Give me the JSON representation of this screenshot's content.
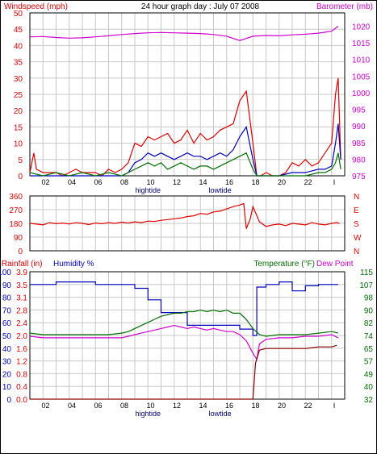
{
  "header": {
    "left_label": "Windspeed (mph)",
    "title": "24 hour graph day : July 07 2008",
    "right_label": "Barometer (mb)"
  },
  "colors": {
    "red": "#e00000",
    "blue": "#0000c0",
    "green": "#007000",
    "magenta": "#d000d0",
    "grid": "#c8c8c8",
    "dark_red": "#8a0000"
  },
  "x_axis": {
    "ticks": [
      "02",
      "04",
      "06",
      "08",
      "10",
      "12",
      "14",
      "16",
      "18",
      "20",
      "22",
      "I"
    ],
    "tide_labels": [
      {
        "text": "hightide",
        "hour": 9.0
      },
      {
        "text": "lowtide",
        "hour": 14.5
      }
    ]
  },
  "chart_data": [
    {
      "type": "line",
      "title": "",
      "y_left_label": "Windspeed (mph)",
      "y_left_ticks": [
        "0",
        "5",
        "10",
        "15",
        "20",
        "25",
        "30",
        "35",
        "40",
        "45",
        "50"
      ],
      "y_left_range": [
        0,
        50
      ],
      "y_right_label": "Barometer (mb)",
      "y_right_ticks": [
        "975",
        "980",
        "985",
        "990",
        "995",
        "1000",
        "1005",
        "1010",
        "1015",
        "1020"
      ],
      "y_right_range": [
        975,
        1024
      ],
      "x_unit": "hour",
      "series": [
        {
          "name": "Barometer (mb)",
          "color": "magenta",
          "x": [
            0,
            1,
            2,
            3,
            4,
            5,
            6,
            7,
            8,
            9,
            10,
            11,
            12,
            13,
            14,
            15,
            15.5,
            16,
            16.5,
            17,
            18,
            19,
            20,
            21,
            22,
            23,
            23.5
          ],
          "y": [
            1016.8,
            1016.9,
            1016.6,
            1016.4,
            1016.5,
            1016.8,
            1017.1,
            1017.5,
            1017.8,
            1018.0,
            1018.1,
            1018.0,
            1017.9,
            1017.8,
            1017.5,
            1017.0,
            1016.3,
            1015.7,
            1016.3,
            1017.0,
            1017.2,
            1017.1,
            1017.4,
            1017.6,
            1017.9,
            1018.5,
            1020.0
          ]
        },
        {
          "name": "",
          "color": "red",
          "x": [
            0,
            0.3,
            0.5,
            1,
            1.5,
            2,
            2.5,
            3,
            3.5,
            4,
            4.5,
            5,
            5.5,
            6,
            6.5,
            7,
            7.5,
            8,
            8.5,
            9,
            9.5,
            10,
            10.5,
            11,
            11.5,
            12,
            12.5,
            13,
            13.5,
            14,
            14.5,
            15,
            15.5,
            16,
            16.5,
            17,
            17.3,
            17.6,
            18,
            18.5,
            19,
            19.5,
            20,
            20.5,
            21,
            21.5,
            22,
            22.5,
            23,
            23.3,
            23.5,
            23.7
          ],
          "y": [
            1,
            7,
            2,
            1,
            1,
            1,
            0,
            1,
            2,
            1,
            1,
            1,
            0,
            2,
            1,
            2,
            4,
            10,
            9,
            12,
            11,
            12,
            13,
            10,
            11,
            14,
            10,
            13,
            11,
            12,
            14,
            15,
            16,
            23,
            26,
            10,
            0,
            0,
            1,
            0,
            0,
            1,
            4,
            3,
            5,
            3,
            4,
            7,
            10,
            25,
            30,
            5
          ]
        },
        {
          "name": "",
          "color": "blue",
          "x": [
            0,
            1,
            2,
            3,
            4,
            5,
            6,
            7,
            7.5,
            8,
            8.5,
            9,
            9.5,
            10,
            10.5,
            11,
            11.5,
            12,
            12.5,
            13,
            13.5,
            14,
            14.5,
            15,
            15.5,
            16,
            16.5,
            17,
            17.3,
            18,
            19,
            20,
            21,
            22,
            22.5,
            23,
            23.3,
            23.5,
            23.7
          ],
          "y": [
            0,
            0,
            0,
            0,
            0,
            0,
            0,
            0,
            1,
            4,
            5,
            7,
            6,
            7,
            6,
            5,
            6,
            7,
            6,
            6,
            5,
            6,
            7,
            6,
            8,
            12,
            15,
            5,
            0,
            0,
            0,
            1,
            1,
            2,
            2,
            3,
            10,
            16,
            5
          ]
        },
        {
          "name": "",
          "color": "green",
          "x": [
            0,
            1,
            2,
            3,
            4,
            5,
            6,
            7,
            7.5,
            8,
            8.5,
            9,
            9.5,
            10,
            10.5,
            11,
            11.5,
            12,
            12.5,
            13,
            13.5,
            14,
            14.5,
            15,
            15.5,
            16,
            16.5,
            17,
            17.3,
            18,
            19,
            20,
            21,
            22,
            22.5,
            23,
            23.3,
            23.5,
            23.7
          ],
          "y": [
            1,
            0,
            1,
            0,
            1,
            0,
            1,
            0,
            1,
            2,
            3,
            4,
            3,
            4,
            2,
            3,
            4,
            3,
            2,
            3,
            3,
            2,
            3,
            4,
            5,
            6,
            7,
            2,
            0,
            0,
            0,
            0,
            0,
            1,
            1,
            2,
            4,
            7,
            2
          ]
        }
      ]
    },
    {
      "type": "line",
      "title": "",
      "y_left_ticks": [
        "0",
        "90",
        "180",
        "270",
        "360"
      ],
      "y_left_range": [
        0,
        360
      ],
      "y_right_ticks": [
        "N",
        "E",
        "S",
        "W",
        "N"
      ],
      "x_unit": "hour",
      "series": [
        {
          "name": "",
          "color": "red",
          "x": [
            0,
            0.5,
            1,
            1.5,
            2,
            2.5,
            3,
            3.5,
            4,
            4.5,
            5,
            5.5,
            6,
            6.5,
            7,
            7.5,
            8,
            8.5,
            9,
            9.5,
            10,
            10.5,
            11,
            11.5,
            12,
            12.5,
            13,
            13.5,
            14,
            14.5,
            15,
            15.5,
            16,
            16.3,
            16.5,
            16.8,
            17,
            17.5,
            18,
            18.5,
            19,
            19.5,
            20,
            20.5,
            21,
            21.5,
            22,
            22.5,
            23,
            23.4,
            23.6
          ],
          "y": [
            180,
            175,
            170,
            185,
            178,
            182,
            176,
            184,
            180,
            172,
            182,
            178,
            185,
            180,
            188,
            182,
            190,
            185,
            195,
            192,
            200,
            205,
            210,
            215,
            225,
            230,
            245,
            240,
            255,
            260,
            275,
            290,
            300,
            310,
            145,
            210,
            290,
            190,
            160,
            170,
            175,
            165,
            180,
            175,
            170,
            185,
            175,
            170,
            180,
            185,
            180
          ]
        }
      ]
    },
    {
      "type": "line",
      "title": "",
      "left_label_1": "Rainfall (in)",
      "left_label_2": "Humidity %",
      "right_label_1": "Temperature (°F)",
      "right_label_2": "Dew Point",
      "y_rain_ticks": [
        "0.0",
        "0.4",
        "0.8",
        "1.2",
        "1.6",
        "2.0",
        "2.4",
        "2.8",
        "3.1",
        "3.5",
        "3.9"
      ],
      "y_humidity_ticks": [
        "0",
        "10",
        "20",
        "30",
        "40",
        "50",
        "60",
        "70",
        "80",
        "90",
        "100"
      ],
      "y_temp_ticks": [
        "32",
        "40",
        "49",
        "57",
        "65",
        "74",
        "82",
        "90",
        "98",
        "107",
        "115"
      ],
      "y_temp_range": [
        32,
        115
      ],
      "y_humidity_range": [
        0,
        100
      ],
      "y_rain_range": [
        0,
        3.9
      ],
      "x_unit": "hour",
      "series": [
        {
          "name": "Humidity %",
          "color": "blue",
          "x": [
            0,
            2,
            2,
            5,
            5,
            8,
            8,
            9,
            9,
            10,
            10,
            12,
            12,
            16,
            16,
            17,
            17,
            17.3,
            17.3,
            18,
            18,
            19,
            19,
            20,
            20,
            21,
            21,
            22,
            22,
            23.5
          ],
          "y": [
            90,
            90,
            92,
            92,
            90,
            90,
            87,
            87,
            78,
            78,
            68,
            68,
            58,
            58,
            55,
            55,
            50,
            50,
            88,
            88,
            90,
            90,
            92,
            92,
            85,
            85,
            89,
            89,
            90,
            90
          ]
        },
        {
          "name": "Temperature (°F)",
          "color": "green",
          "x": [
            0,
            1,
            2,
            3,
            4,
            5,
            6,
            7,
            7.5,
            8,
            8.5,
            9,
            9.5,
            10,
            10.5,
            11,
            11.5,
            12,
            12.5,
            13,
            13.5,
            14,
            14.5,
            15,
            15.5,
            16,
            16.5,
            17,
            17.5,
            18,
            19,
            20,
            21,
            22,
            23,
            23.5
          ],
          "y": [
            75,
            74,
            74,
            74,
            74,
            74,
            74,
            75,
            76,
            78,
            80,
            82,
            84,
            86,
            87,
            88,
            88,
            89,
            89,
            90,
            89,
            90,
            89,
            90,
            88,
            88,
            84,
            78,
            74,
            73,
            74,
            74,
            74,
            75,
            76,
            75
          ]
        },
        {
          "name": "Dew Point",
          "color": "magenta",
          "x": [
            0,
            1,
            2,
            3,
            4,
            5,
            6,
            7,
            7.5,
            8,
            8.5,
            9,
            9.5,
            10,
            10.5,
            11,
            11.5,
            12,
            12.5,
            13,
            13.5,
            14,
            14.5,
            15,
            15.5,
            16,
            16.5,
            17,
            17.3,
            17.5,
            18,
            19,
            20,
            21,
            22,
            23,
            23.5
          ],
          "y": [
            73,
            72,
            72,
            72,
            72,
            72,
            72,
            72,
            73,
            74,
            75,
            76,
            77,
            78,
            79,
            80,
            79,
            78,
            79,
            78,
            77,
            78,
            77,
            76,
            76,
            74,
            70,
            62,
            58,
            68,
            71,
            72,
            72,
            73,
            73,
            74,
            72
          ]
        },
        {
          "name": "Rainfall (in)",
          "color": "dark_red",
          "x": [
            0,
            16.5,
            17,
            17.2,
            17.5,
            18,
            19,
            20,
            21,
            22,
            23,
            23.4
          ],
          "y": [
            0,
            0,
            0,
            1.1,
            1.5,
            1.55,
            1.55,
            1.55,
            1.55,
            1.6,
            1.6,
            1.65
          ]
        }
      ]
    }
  ]
}
